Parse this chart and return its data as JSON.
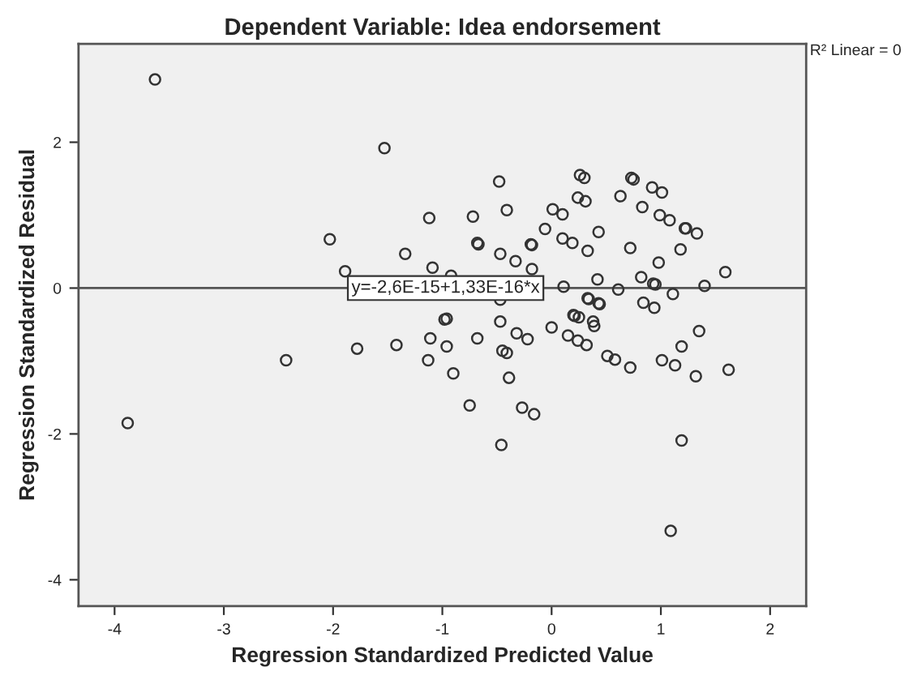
{
  "chart_data": {
    "type": "scatter",
    "title": "Dependent Variable: Idea endorsement",
    "xlabel": "Regression Standardized Predicted Value",
    "ylabel": "Regression Standardized Residual",
    "xlim": [
      -4.33,
      2.33
    ],
    "ylim": [
      -4.36,
      3.35
    ],
    "xticks": [
      -4,
      -3,
      -2,
      -1,
      0,
      1,
      2
    ],
    "yticks": [
      -4,
      -2,
      0,
      2
    ],
    "grid": false,
    "legend": false,
    "series": [
      {
        "marker": "circle",
        "color": "#333333",
        "x": [
          -3.63,
          -1.53,
          -1.12,
          -2.03,
          -1.34,
          -1.09,
          -1.89,
          -0.92,
          -0.98,
          -0.48,
          0.26,
          0.3,
          0.73,
          0.75,
          0.92,
          1.01,
          0.24,
          0.31,
          0.63,
          0.83,
          -0.41,
          -0.72,
          0.01,
          0.1,
          0.99,
          1.08,
          1.22,
          1.23,
          1.33,
          -0.06,
          0.43,
          -0.68,
          -0.67,
          -0.19,
          -0.18,
          0.1,
          0.19,
          0.33,
          0.72,
          1.18,
          -0.47,
          -0.33,
          0.98,
          -0.18,
          0.42,
          0.82,
          0.93,
          0.95,
          1.59,
          1.4,
          0.61,
          1.11,
          0.11,
          0.33,
          0.34,
          0.43,
          0.44,
          0.84,
          0.94,
          0.2,
          0.21,
          0.25,
          0.38,
          -0.47,
          -0.47,
          -0.96,
          -0.96,
          -0.68,
          -0.32,
          -0.22,
          -0.45,
          -0.41,
          -0.9,
          -0.39,
          -0.75,
          -0.27,
          -0.16,
          -0.46,
          0.0,
          0.15,
          0.24,
          0.32,
          0.39,
          0.51,
          0.58,
          0.72,
          1.01,
          1.13,
          1.19,
          1.35,
          1.32,
          1.62,
          1.19,
          1.09,
          -3.88,
          -2.43,
          -1.78,
          -1.42,
          -1.11,
          -1.13
        ],
        "values": [
          2.86,
          1.92,
          0.96,
          0.67,
          0.47,
          0.28,
          0.23,
          0.17,
          -0.43,
          1.46,
          1.55,
          1.51,
          1.51,
          1.49,
          1.38,
          1.31,
          1.24,
          1.19,
          1.26,
          1.11,
          1.07,
          0.98,
          1.08,
          1.01,
          1.0,
          0.93,
          0.82,
          0.82,
          0.75,
          0.81,
          0.77,
          0.62,
          0.6,
          0.6,
          0.59,
          0.68,
          0.62,
          0.51,
          0.55,
          0.53,
          0.47,
          0.37,
          0.35,
          0.26,
          0.12,
          0.15,
          0.06,
          0.05,
          0.22,
          0.03,
          -0.02,
          -0.08,
          0.02,
          -0.14,
          -0.15,
          -0.21,
          -0.22,
          -0.2,
          -0.27,
          -0.37,
          -0.38,
          -0.4,
          -0.46,
          -0.16,
          -0.46,
          -0.42,
          -0.8,
          -0.69,
          -0.62,
          -0.7,
          -0.86,
          -0.89,
          -1.17,
          -1.23,
          -1.61,
          -1.64,
          -1.73,
          -2.15,
          -0.54,
          -0.65,
          -0.72,
          -0.78,
          -0.52,
          -0.93,
          -0.98,
          -1.09,
          -0.99,
          -1.06,
          -0.8,
          -0.59,
          -1.21,
          -1.12,
          -2.09,
          -3.33,
          -1.85,
          -0.99,
          -0.83,
          -0.78,
          -0.69,
          -0.99
        ]
      },
      {
        "type": "line",
        "color": "#555555",
        "x": [
          -4.33,
          2.33
        ],
        "values": [
          0,
          0
        ]
      }
    ],
    "annotations": [
      {
        "text": "y=-2,6E-15+1,33E-16*x",
        "x": -0.97,
        "y": 0
      },
      "R² Linear = 0"
    ]
  }
}
